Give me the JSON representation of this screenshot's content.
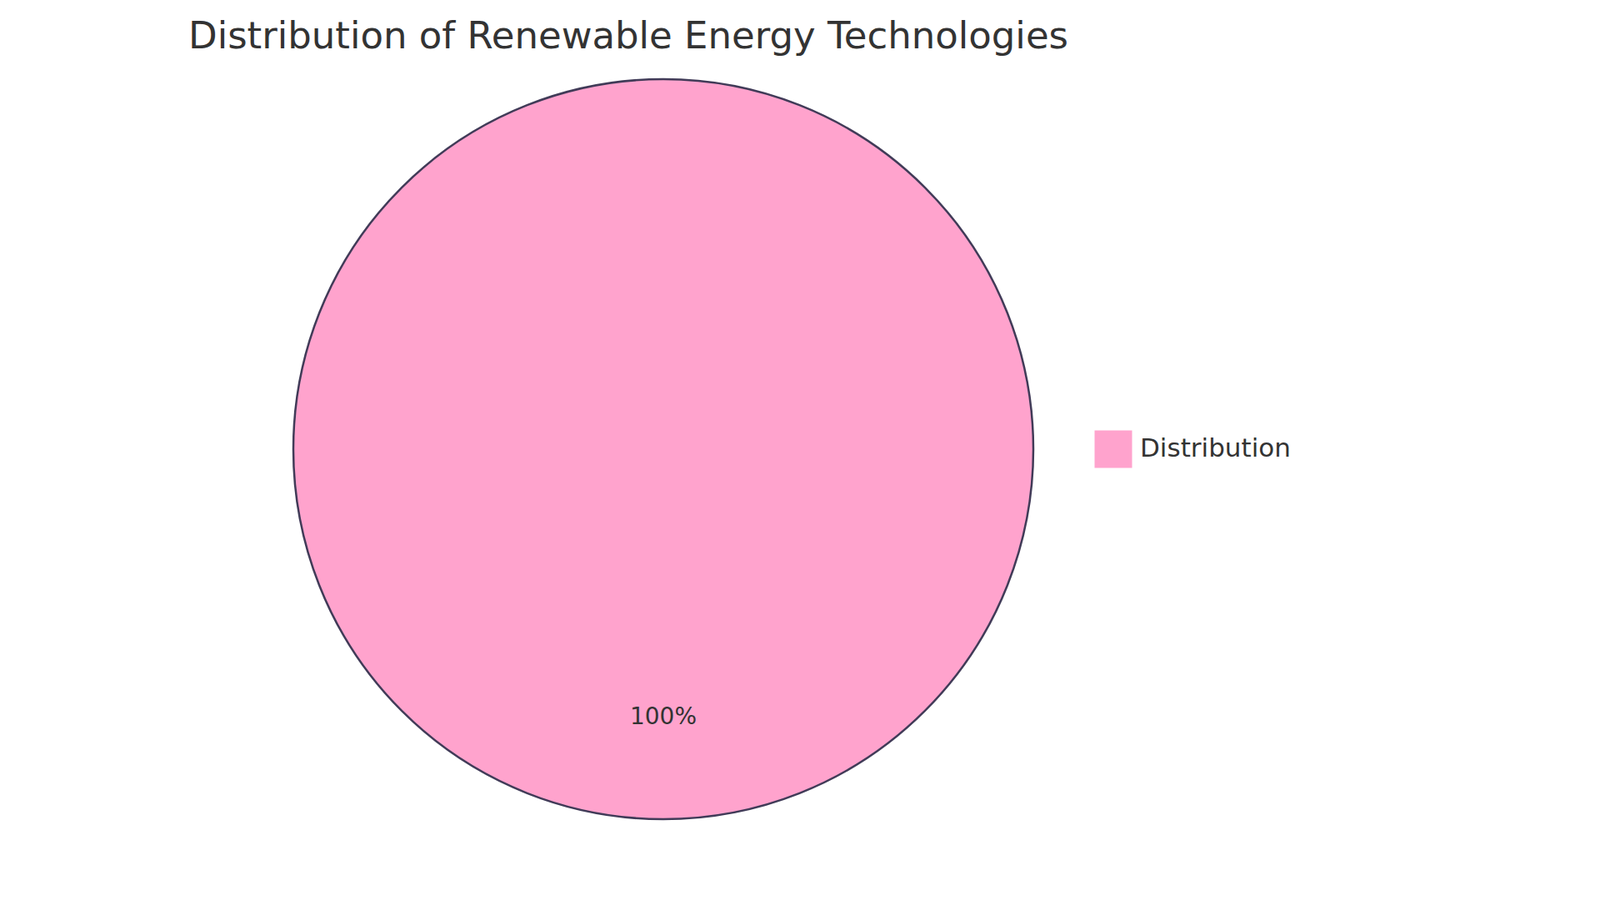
{
  "chart_data": {
    "type": "pie",
    "title": "Distribution of Renewable Energy Technologies",
    "categories": [
      "Distribution"
    ],
    "values": [
      100
    ],
    "value_labels": [
      "100%"
    ],
    "colors": [
      "#ffa3cd"
    ],
    "data_labels": true,
    "legend": "right"
  }
}
